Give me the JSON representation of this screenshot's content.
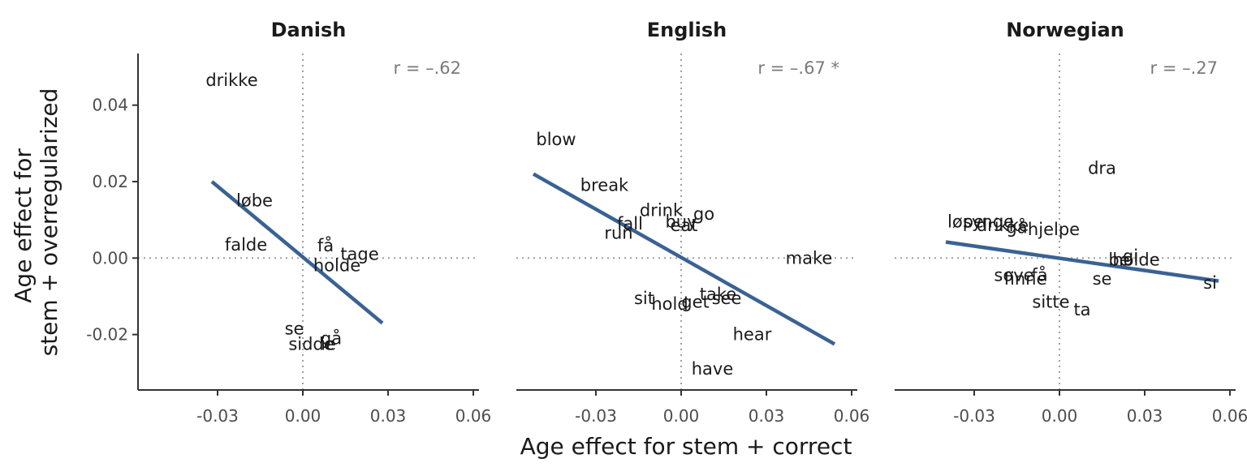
{
  "chart_data": {
    "type": "scatter",
    "xlabel": "Age effect for stem + correct",
    "ylabel_lines": [
      "Age effect for",
      "stem + overregularized"
    ],
    "xlim": [
      -0.058,
      0.062
    ],
    "ylim": [
      -0.0345,
      0.0535
    ],
    "x_ticks": [
      -0.03,
      0.0,
      0.03,
      0.06
    ],
    "x_tick_labels": [
      "-0.03",
      "0.00",
      "0.03",
      "0.06"
    ],
    "y_ticks": [
      -0.02,
      0.0,
      0.02,
      0.04
    ],
    "y_tick_labels": [
      "-0.02",
      "0.00",
      "0.02",
      "0.04"
    ],
    "reference_lines": {
      "x": 0,
      "y": 0,
      "style": "dotted"
    },
    "line_color": "#3a6293",
    "panels": [
      {
        "title": "Danish",
        "r_label": "r = –.62",
        "fit_line": [
          [
            -0.032,
            0.02
          ],
          [
            0.028,
            -0.017
          ]
        ],
        "points": [
          {
            "label": "drikke",
            "x": -0.025,
            "y": 0.0465
          },
          {
            "label": "løbe",
            "x": -0.017,
            "y": 0.015
          },
          {
            "label": "falde",
            "x": -0.02,
            "y": 0.0035
          },
          {
            "label": "få",
            "x": 0.008,
            "y": 0.0032
          },
          {
            "label": "tage",
            "x": 0.02,
            "y": 0.001
          },
          {
            "label": "holde",
            "x": 0.012,
            "y": -0.002
          },
          {
            "label": "se",
            "x": -0.003,
            "y": -0.0185
          },
          {
            "label": "gå",
            "x": 0.01,
            "y": -0.021
          },
          {
            "label": "sidde",
            "x": 0.003,
            "y": -0.0225
          },
          {
            "label": "ie",
            "x": 0.009,
            "y": -0.0225
          }
        ]
      },
      {
        "title": "English",
        "r_label": "r = –.67 *",
        "fit_line": [
          [
            -0.052,
            0.022
          ],
          [
            0.054,
            -0.0225
          ]
        ],
        "points": [
          {
            "label": "blow",
            "x": -0.044,
            "y": 0.031
          },
          {
            "label": "break",
            "x": -0.027,
            "y": 0.019
          },
          {
            "label": "drink",
            "x": -0.007,
            "y": 0.0125
          },
          {
            "label": "go",
            "x": 0.008,
            "y": 0.0115
          },
          {
            "label": "buy",
            "x": 0.0,
            "y": 0.0095
          },
          {
            "label": "eat",
            "x": 0.001,
            "y": 0.0085
          },
          {
            "label": "fall",
            "x": -0.018,
            "y": 0.009
          },
          {
            "label": "run",
            "x": -0.022,
            "y": 0.0065
          },
          {
            "label": "make",
            "x": 0.045,
            "y": 0.0
          },
          {
            "label": "sit",
            "x": -0.013,
            "y": -0.0105
          },
          {
            "label": "take",
            "x": 0.013,
            "y": -0.0095
          },
          {
            "label": "see",
            "x": 0.016,
            "y": -0.0105
          },
          {
            "label": "get",
            "x": 0.005,
            "y": -0.0115
          },
          {
            "label": "hold",
            "x": -0.004,
            "y": -0.012
          },
          {
            "label": "hear",
            "x": 0.025,
            "y": -0.02
          },
          {
            "label": "have",
            "x": 0.011,
            "y": -0.029
          }
        ]
      },
      {
        "title": "Norwegian",
        "r_label": "r = –.27",
        "fit_line": [
          [
            -0.04,
            0.0042
          ],
          [
            0.056,
            -0.006
          ]
        ],
        "points": [
          {
            "label": "dra",
            "x": 0.015,
            "y": 0.0235
          },
          {
            "label": "løpe",
            "x": -0.033,
            "y": 0.0095
          },
          {
            "label": "synge",
            "x": -0.025,
            "y": 0.0095
          },
          {
            "label": "drikke",
            "x": -0.02,
            "y": 0.0085
          },
          {
            "label": "gå",
            "x": -0.015,
            "y": 0.008
          },
          {
            "label": "hjelpe",
            "x": -0.002,
            "y": 0.0075
          },
          {
            "label": "gi",
            "x": 0.025,
            "y": 0.0005
          },
          {
            "label": "be",
            "x": 0.021,
            "y": -0.0005
          },
          {
            "label": "holde",
            "x": 0.027,
            "y": -0.0005
          },
          {
            "label": "sove",
            "x": -0.016,
            "y": -0.0045
          },
          {
            "label": "få",
            "x": -0.007,
            "y": -0.0045
          },
          {
            "label": "finne",
            "x": -0.012,
            "y": -0.0055
          },
          {
            "label": "se",
            "x": 0.015,
            "y": -0.0055
          },
          {
            "label": "si",
            "x": 0.053,
            "y": -0.0065
          },
          {
            "label": "sitte",
            "x": -0.003,
            "y": -0.0115
          },
          {
            "label": "ta",
            "x": 0.008,
            "y": -0.0135
          }
        ]
      }
    ]
  }
}
